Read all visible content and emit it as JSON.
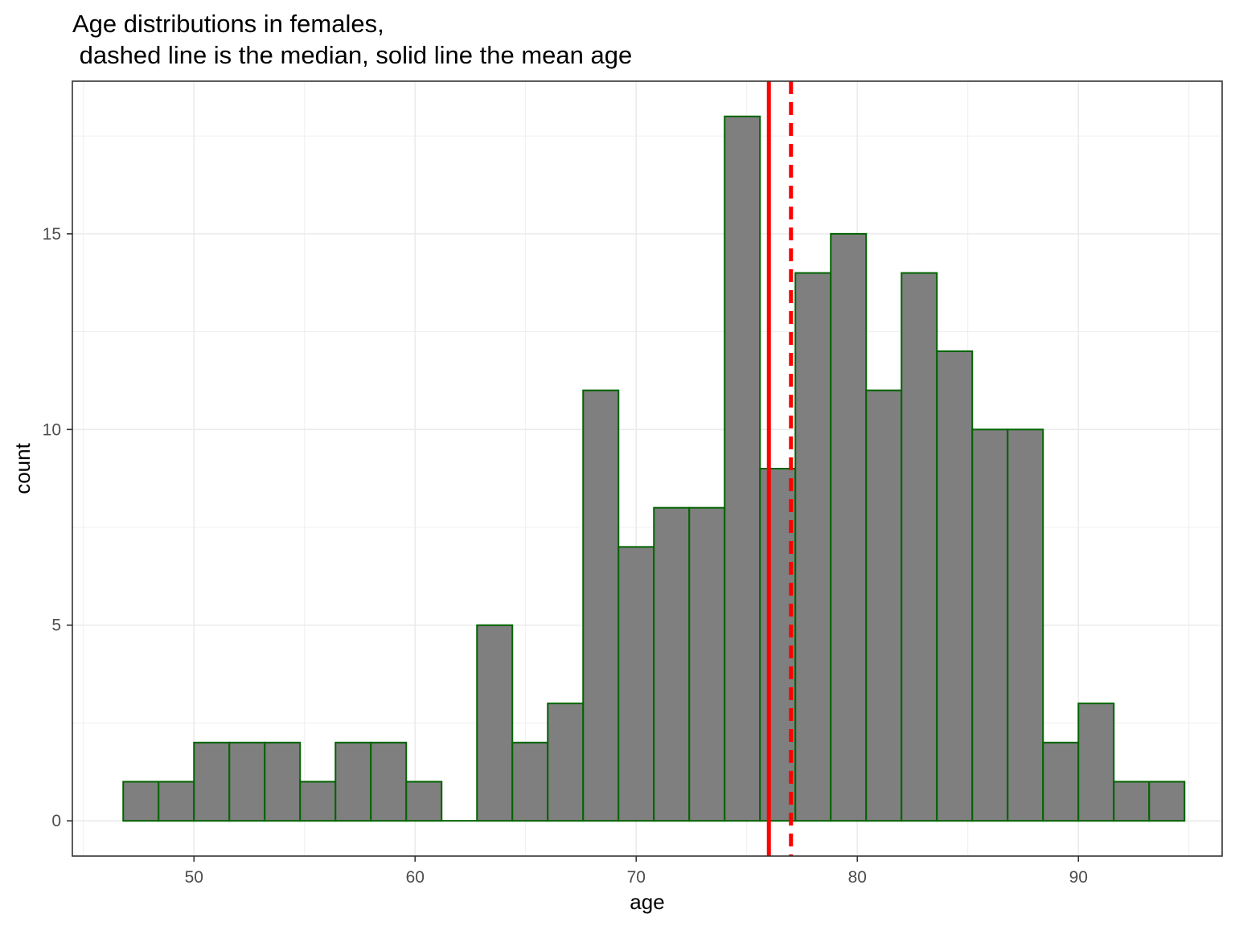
{
  "chart_data": {
    "type": "bar",
    "title": "Age distributions in females,\n dashed line is the median, solid line the mean age",
    "xlabel": "age",
    "ylabel": "count",
    "xlim": [
      44.5,
      96.5
    ],
    "ylim": [
      -0.9,
      18.9
    ],
    "xticks": [
      50,
      60,
      70,
      80,
      90
    ],
    "yticks": [
      0,
      5,
      10,
      15
    ],
    "grid": true,
    "bin_width": 1.6,
    "bins": [
      {
        "start": 46.8,
        "end": 48.4,
        "count": 1
      },
      {
        "start": 48.4,
        "end": 50.0,
        "count": 1
      },
      {
        "start": 50.0,
        "end": 51.6,
        "count": 2
      },
      {
        "start": 51.6,
        "end": 53.2,
        "count": 2
      },
      {
        "start": 53.2,
        "end": 54.8,
        "count": 2
      },
      {
        "start": 54.8,
        "end": 56.4,
        "count": 1
      },
      {
        "start": 56.4,
        "end": 58.0,
        "count": 2
      },
      {
        "start": 58.0,
        "end": 59.6,
        "count": 2
      },
      {
        "start": 59.6,
        "end": 61.2,
        "count": 1
      },
      {
        "start": 61.2,
        "end": 62.8,
        "count": 0
      },
      {
        "start": 62.8,
        "end": 64.4,
        "count": 5
      },
      {
        "start": 64.4,
        "end": 66.0,
        "count": 2
      },
      {
        "start": 66.0,
        "end": 67.6,
        "count": 3
      },
      {
        "start": 67.6,
        "end": 69.2,
        "count": 11
      },
      {
        "start": 69.2,
        "end": 70.8,
        "count": 7
      },
      {
        "start": 70.8,
        "end": 72.4,
        "count": 8
      },
      {
        "start": 72.4,
        "end": 74.0,
        "count": 8
      },
      {
        "start": 74.0,
        "end": 75.6,
        "count": 18
      },
      {
        "start": 75.6,
        "end": 77.2,
        "count": 9
      },
      {
        "start": 77.2,
        "end": 78.8,
        "count": 14
      },
      {
        "start": 78.8,
        "end": 80.4,
        "count": 15
      },
      {
        "start": 80.4,
        "end": 82.0,
        "count": 11
      },
      {
        "start": 82.0,
        "end": 83.6,
        "count": 14
      },
      {
        "start": 83.6,
        "end": 85.2,
        "count": 12
      },
      {
        "start": 85.2,
        "end": 86.8,
        "count": 10
      },
      {
        "start": 86.8,
        "end": 88.4,
        "count": 10
      },
      {
        "start": 88.4,
        "end": 90.0,
        "count": 2
      },
      {
        "start": 90.0,
        "end": 91.6,
        "count": 3
      },
      {
        "start": 91.6,
        "end": 93.2,
        "count": 1
      },
      {
        "start": 93.2,
        "end": 94.8,
        "count": 1
      }
    ],
    "mean": 76.0,
    "median": 77.0,
    "colors": {
      "bar_fill": "#7f7f7f",
      "bar_outline": "#006400",
      "mean_line": "#ff0000",
      "median_line": "#ff0000",
      "grid": "#ebebeb",
      "panel_border": "#333333"
    }
  }
}
